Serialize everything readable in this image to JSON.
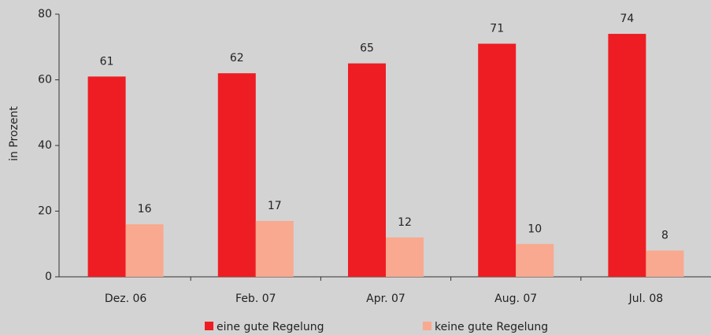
{
  "chart_data": {
    "type": "bar",
    "y_label": "in Prozent",
    "categories": [
      "Dez. 06",
      "Feb. 07",
      "Apr. 07",
      "Aug. 07",
      "Jul. 08"
    ],
    "series": [
      {
        "name": "eine gute Regelung",
        "color": "#ee1d23",
        "values": [
          61,
          62,
          65,
          71,
          74
        ]
      },
      {
        "name": "keine gute Regelung",
        "color": "#f8a98f",
        "values": [
          16,
          17,
          12,
          10,
          8
        ]
      }
    ],
    "ylim": [
      0,
      80
    ],
    "yticks": [
      0,
      20,
      40,
      60,
      80
    ]
  }
}
